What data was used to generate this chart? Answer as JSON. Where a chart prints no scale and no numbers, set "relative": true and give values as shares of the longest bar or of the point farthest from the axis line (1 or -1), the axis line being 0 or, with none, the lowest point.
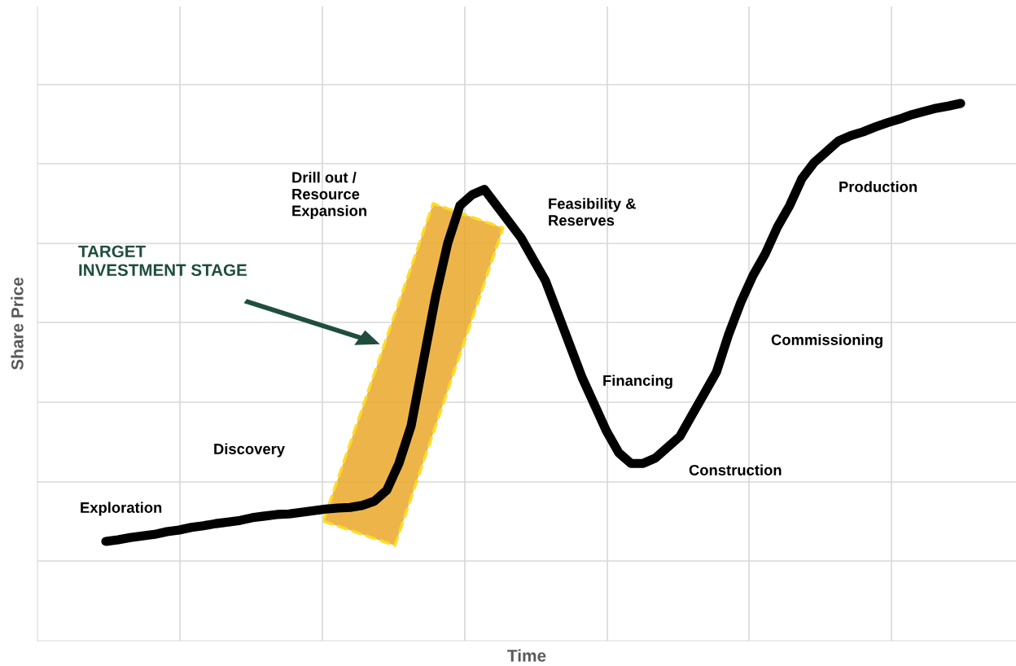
{
  "chart_data": {
    "type": "line",
    "relative": true,
    "xlabel": "Time",
    "ylabel": "Share Price",
    "grid": true,
    "marker": "none",
    "line_style": "solid",
    "annotations": [
      "Exploration",
      "Discovery",
      "Drill out /\nResource\nExpansion",
      "Feasibility &\nReserves",
      "Financing",
      "Construction",
      "Commissioning",
      "Production",
      "TARGET\nINVESTMENT STAGE"
    ],
    "categories": [
      null,
      null,
      null,
      null,
      null,
      null,
      null,
      null,
      null,
      null,
      null,
      null,
      null,
      null,
      null,
      null,
      null,
      null,
      null,
      null,
      null,
      null,
      null,
      null,
      null,
      null,
      null,
      null,
      null,
      null,
      null,
      null,
      null,
      null,
      null,
      null,
      null,
      null,
      null,
      null,
      null,
      null,
      null,
      null,
      null,
      null,
      null,
      null,
      null,
      null,
      null,
      null,
      null,
      null,
      null,
      null,
      null,
      null,
      null,
      null,
      null,
      null,
      null,
      null,
      null,
      null,
      null,
      null,
      null,
      null,
      null
    ],
    "series": [
      {
        "color": "#000000",
        "values": [
          0.185,
          0.188,
          0.192,
          0.195,
          0.198,
          0.203,
          0.206,
          0.211,
          0.214,
          0.218,
          0.221,
          0.224,
          0.229,
          0.232,
          0.235,
          0.236,
          0.239,
          0.242,
          0.245,
          0.247,
          0.248,
          0.252,
          0.26,
          0.28,
          0.33,
          0.4,
          0.52,
          0.64,
          0.74,
          0.81,
          0.83,
          0.84,
          0.81,
          0.78,
          0.75,
          0.71,
          0.67,
          0.61,
          0.55,
          0.49,
          0.44,
          0.39,
          0.35,
          0.33,
          0.33,
          0.34,
          0.36,
          0.38,
          0.42,
          0.46,
          0.5,
          0.57,
          0.63,
          0.68,
          0.72,
          0.77,
          0.81,
          0.86,
          0.89,
          0.91,
          0.93,
          0.94,
          0.947,
          0.956,
          0.964,
          0.971,
          0.979,
          0.985,
          0.991,
          0.995,
          1.0
        ]
      }
    ]
  }
}
